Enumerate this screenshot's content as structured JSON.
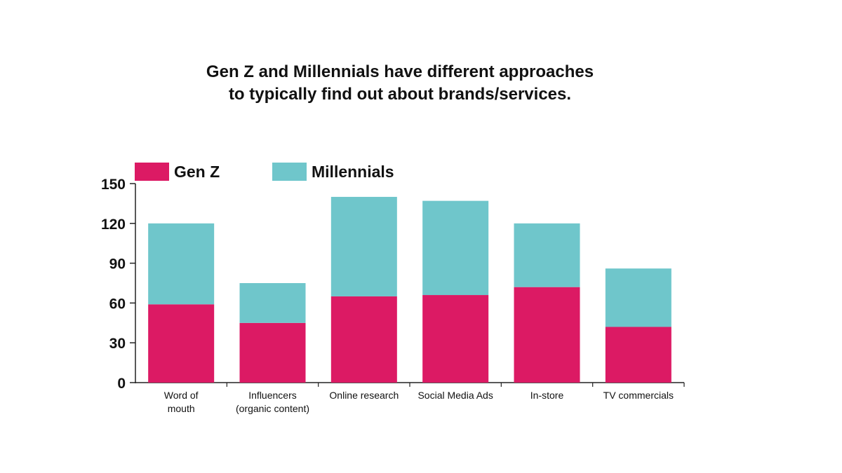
{
  "chart_data": {
    "type": "bar",
    "stacked": true,
    "title": [
      "Gen Z and Millennials have different approaches",
      "to typically find out about brands/services."
    ],
    "xlabel": "",
    "ylabel": "",
    "ylim": [
      0,
      150
    ],
    "yticks": [
      0,
      30,
      60,
      90,
      120,
      150
    ],
    "grid": false,
    "legend_position": "top-left",
    "categories": [
      [
        "Word of",
        "mouth"
      ],
      [
        "Influencers",
        "(organic content)"
      ],
      [
        "Online research"
      ],
      [
        "Social Media Ads"
      ],
      [
        "In-store"
      ],
      [
        "TV commercials"
      ]
    ],
    "series": [
      {
        "name": "Gen Z",
        "color": "#dc1a64",
        "values": [
          59,
          45,
          65,
          66,
          72,
          42
        ]
      },
      {
        "name": "Millennials",
        "color": "#6fc6cb",
        "values": [
          61,
          30,
          75,
          71,
          48,
          44
        ]
      }
    ]
  }
}
